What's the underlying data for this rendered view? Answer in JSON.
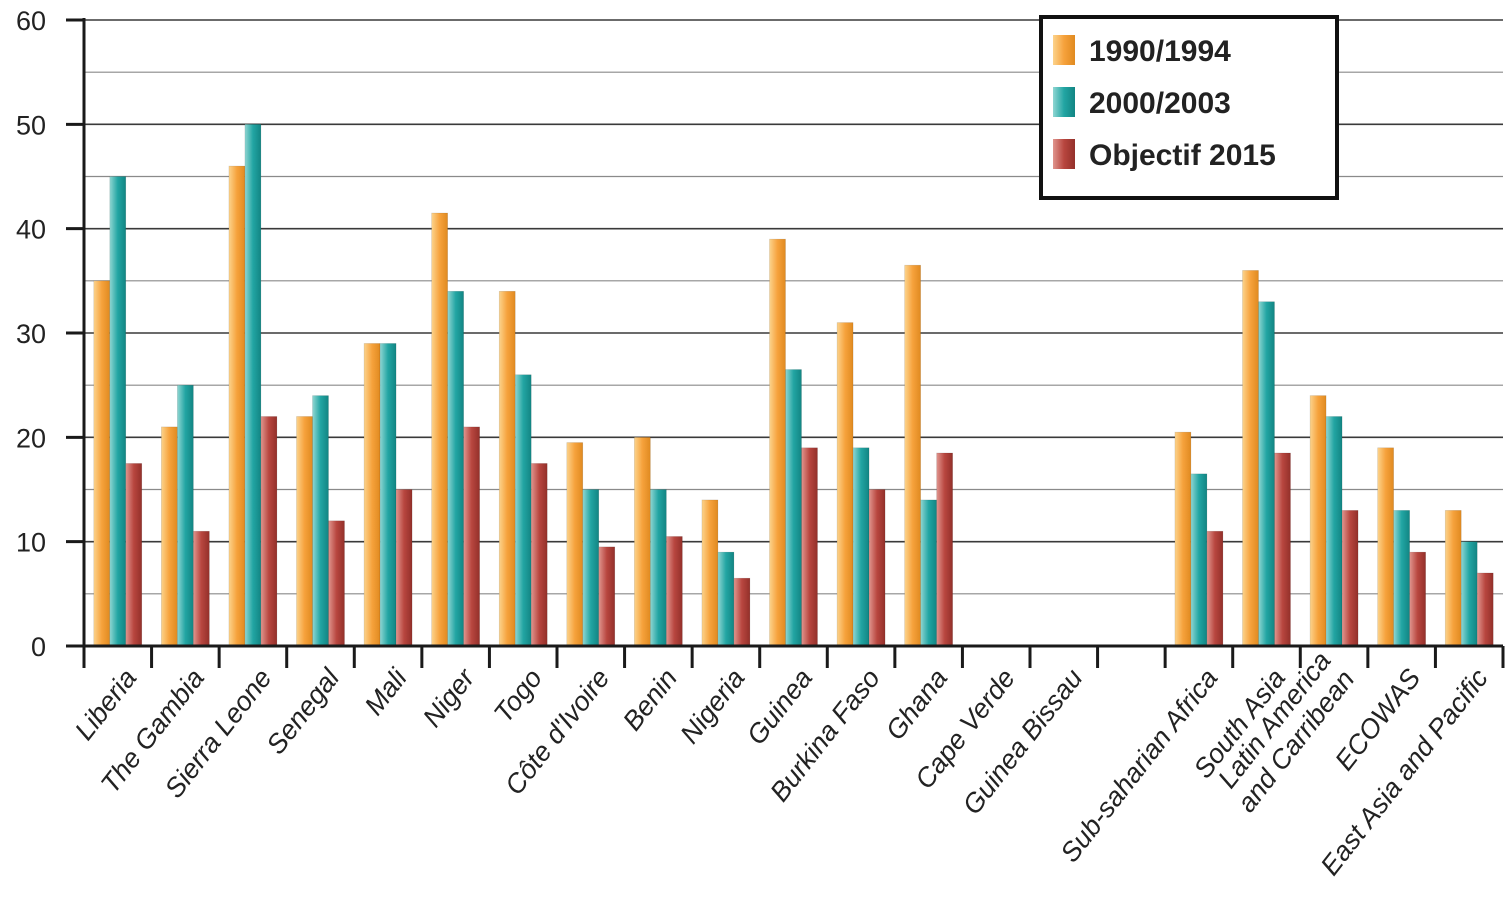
{
  "chart_data": {
    "type": "bar",
    "title": "",
    "xlabel": "",
    "ylabel": "",
    "ylim": [
      0,
      60
    ],
    "yticks": [
      0,
      10,
      20,
      30,
      40,
      50,
      60
    ],
    "grid": true,
    "legend_position": "top-right",
    "categories": [
      "Liberia",
      "The Gambia",
      "Sierra Leone",
      "Senegal",
      "Mali",
      "Niger",
      "Togo",
      "Côte d'Ivoire",
      "Benin",
      "Nigeria",
      "Guinea",
      "Burkina Faso",
      "Ghana",
      "Cape Verde",
      "Guinea Bissau",
      "",
      "Sub-saharian Africa",
      "South Asia",
      "Latin America\nand Carribean",
      "ECOWAS",
      "East Asia and Pacific"
    ],
    "series": [
      {
        "name": "1990/1994",
        "color": "#f6a23c",
        "values": [
          35,
          21,
          46,
          22,
          29,
          41.5,
          34,
          19.5,
          20,
          14,
          39,
          31,
          36.5,
          null,
          null,
          null,
          20.5,
          36,
          24,
          19,
          13
        ]
      },
      {
        "name": "2000/2003",
        "color": "#22a5a3",
        "values": [
          45,
          25,
          50,
          24,
          29,
          34,
          26,
          15,
          15,
          9,
          26.5,
          19,
          14,
          null,
          null,
          null,
          16.5,
          33,
          22,
          13,
          10
        ]
      },
      {
        "name": "Objectif 2015",
        "color": "#b8463f",
        "values": [
          17.5,
          11,
          22,
          12,
          15,
          21,
          17.5,
          9.5,
          10.5,
          6.5,
          19,
          15,
          18.5,
          null,
          null,
          null,
          11,
          18.5,
          13,
          9,
          7
        ]
      }
    ]
  }
}
